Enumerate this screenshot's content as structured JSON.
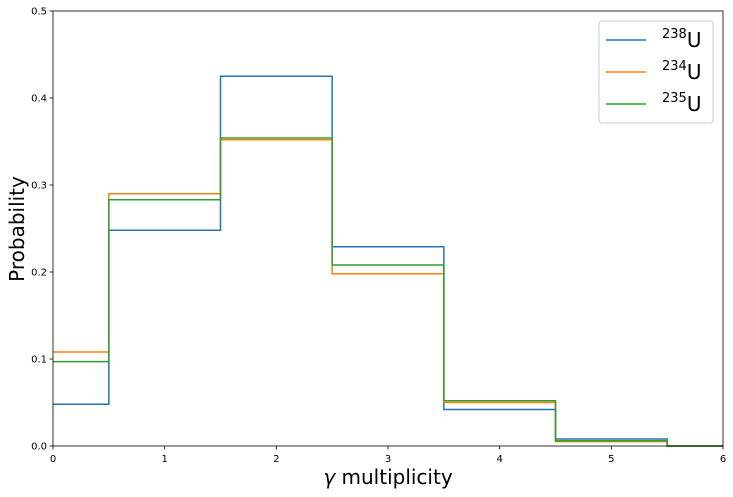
{
  "chart_data": {
    "type": "line",
    "drawstyle": "steps-mid",
    "xlabel": "γ multiplicity",
    "xlabel_symbol": "γ",
    "xlabel_text": " multiplicity",
    "ylabel": "Probability",
    "xlim": [
      0,
      6
    ],
    "ylim": [
      0,
      0.5
    ],
    "xticks": [
      "0",
      "1",
      "2",
      "3",
      "4",
      "5",
      "6"
    ],
    "yticks": [
      "0.0",
      "0.1",
      "0.2",
      "0.3",
      "0.4",
      "0.5"
    ],
    "grid": false,
    "legend_position": "top-right",
    "x": [
      0,
      1,
      2,
      3,
      4,
      5,
      6
    ],
    "series": [
      {
        "name": "238U",
        "mass": "238",
        "element": "U",
        "color": "#1f77b4",
        "values": [
          0.048,
          0.248,
          0.425,
          0.229,
          0.042,
          0.008,
          0.0
        ]
      },
      {
        "name": "234U",
        "mass": "234",
        "element": "U",
        "color": "#ff7f0e",
        "values": [
          0.108,
          0.29,
          0.352,
          0.198,
          0.05,
          0.005,
          0.0
        ]
      },
      {
        "name": "235U",
        "mass": "235",
        "element": "U",
        "color": "#2ca02c",
        "values": [
          0.097,
          0.283,
          0.354,
          0.208,
          0.052,
          0.006,
          0.0
        ]
      }
    ]
  }
}
